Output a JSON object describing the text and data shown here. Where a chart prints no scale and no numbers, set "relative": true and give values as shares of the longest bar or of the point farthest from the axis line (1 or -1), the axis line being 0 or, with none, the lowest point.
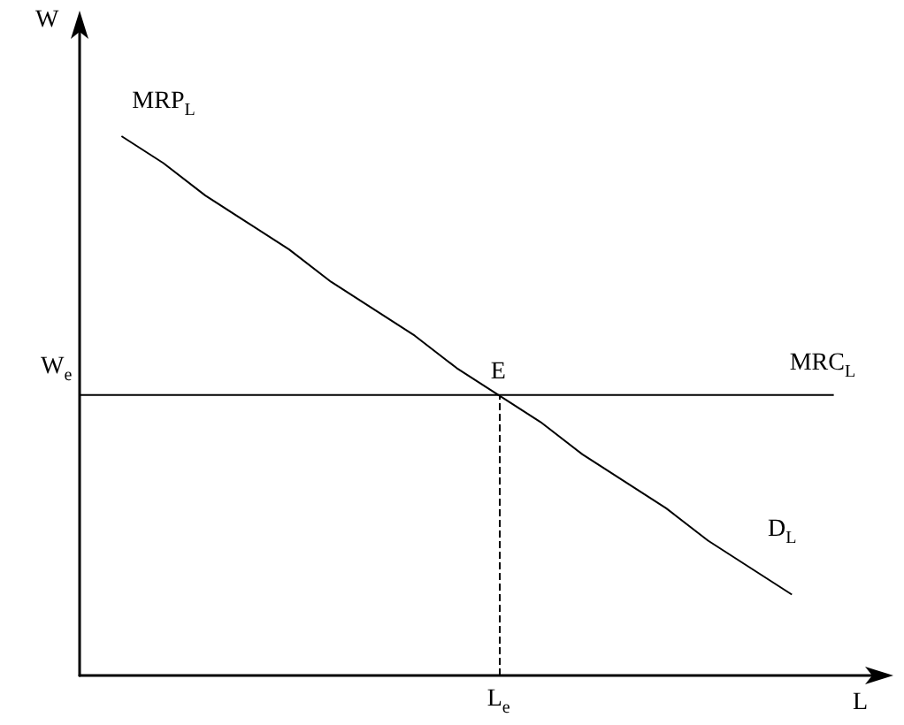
{
  "chart_data": {
    "type": "line",
    "relative": true,
    "xlabel": "L",
    "ylabel": "W",
    "grid": false,
    "marker": "none",
    "categories": [
      null,
      null,
      null,
      null,
      null,
      null,
      null,
      null,
      null,
      null,
      null,
      null,
      null,
      null,
      null,
      null,
      null,
      null,
      null,
      null
    ],
    "series": [
      {
        "name": "MRP$_{L}$",
        "color": "#000000",
        "line_style": "solid",
        "values": [
          null,
          1.0,
          0.95,
          0.89,
          0.84,
          0.79,
          0.73,
          0.68,
          0.63,
          0.57,
          0.52,
          0.47,
          0.41,
          0.36,
          0.31,
          0.25,
          0.2,
          0.15,
          null,
          null
        ]
      },
      {
        "name": "MRC$_{L}$",
        "color": "#000000",
        "line_style": "solid",
        "values": [
          0.52,
          0.52,
          0.52,
          0.52,
          0.52,
          0.52,
          0.52,
          0.52,
          0.52,
          0.52,
          0.52,
          0.52,
          0.52,
          0.52,
          0.52,
          0.52,
          0.52,
          0.52,
          0.52,
          null
        ]
      }
    ],
    "annotations": [
      "E",
      "D$_{L}$",
      "W$_{e}$",
      "L$_{e}$"
    ]
  }
}
